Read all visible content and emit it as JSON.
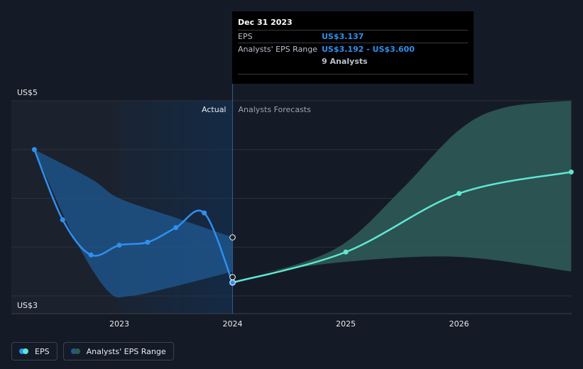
{
  "chart_data": {
    "type": "line",
    "y_axis": {
      "top_label": "US$5",
      "bottom_label": "US$3",
      "ylim": [
        3,
        5
      ]
    },
    "x_ticks": [
      "2023",
      "2024",
      "2025",
      "2026"
    ],
    "section_labels": {
      "actual": "Actual",
      "forecast": "Analysts Forecasts"
    },
    "series": [
      {
        "name": "EPS",
        "color": "#2f8ff0",
        "points": [
          {
            "x": 2022.25,
            "y": 4.5
          },
          {
            "x": 2022.5,
            "y": 3.78
          },
          {
            "x": 2022.75,
            "y": 3.42
          },
          {
            "x": 2023.0,
            "y": 3.52
          },
          {
            "x": 2023.25,
            "y": 3.55
          },
          {
            "x": 2023.5,
            "y": 3.7
          },
          {
            "x": 2023.75,
            "y": 3.85
          },
          {
            "x": 2024.0,
            "y": 3.137
          }
        ]
      },
      {
        "name": "EPS forecast",
        "color": "#5ee6d2",
        "points": [
          {
            "x": 2024.0,
            "y": 3.137
          },
          {
            "x": 2025.0,
            "y": 3.45
          },
          {
            "x": 2026.0,
            "y": 4.05
          },
          {
            "x": 2026.99,
            "y": 4.27
          }
        ]
      }
    ],
    "past_range": {
      "upper": [
        {
          "x": 2022.25,
          "y": 4.5
        },
        {
          "x": 2022.75,
          "y": 4.2
        },
        {
          "x": 2023.0,
          "y": 4.0
        },
        {
          "x": 2023.5,
          "y": 3.8
        },
        {
          "x": 2024.0,
          "y": 3.6
        }
      ],
      "lower": [
        {
          "x": 2022.25,
          "y": 4.5
        },
        {
          "x": 2022.6,
          "y": 3.6
        },
        {
          "x": 2022.9,
          "y": 3.05
        },
        {
          "x": 2023.1,
          "y": 3.0
        },
        {
          "x": 2023.5,
          "y": 3.1
        },
        {
          "x": 2024.0,
          "y": 3.25
        }
      ]
    },
    "forecast_range": {
      "upper": [
        {
          "x": 2024.0,
          "y": 3.192
        },
        {
          "x": 2024.5,
          "y": 3.3
        },
        {
          "x": 2025.0,
          "y": 3.55
        },
        {
          "x": 2025.5,
          "y": 4.1
        },
        {
          "x": 2026.0,
          "y": 4.7
        },
        {
          "x": 2026.4,
          "y": 4.93
        },
        {
          "x": 2026.99,
          "y": 5.0
        }
      ],
      "lower": [
        {
          "x": 2024.0,
          "y": 3.192
        },
        {
          "x": 2025.0,
          "y": 3.35
        },
        {
          "x": 2026.0,
          "y": 3.4
        },
        {
          "x": 2026.99,
          "y": 3.25
        }
      ]
    },
    "extra_markers": [
      {
        "x": 2024.0,
        "y": 3.6
      },
      {
        "x": 2024.0,
        "y": 3.192
      }
    ],
    "grid": true,
    "colors": {
      "background": "#151b26",
      "past_shade": "#1b222e",
      "highlight_band": "#142a45",
      "past_range_fill": "#1f5a93",
      "forecast_range_fill": "#2d5a57",
      "gridline": "#2a313c",
      "forecast_label": "#9aa3af"
    }
  },
  "tooltip": {
    "date": "Dec 31 2023",
    "rows": [
      {
        "key": "EPS",
        "value": "US$3.137"
      },
      {
        "key": "Analysts' EPS Range",
        "value": "US$3.192 - US$3.600"
      },
      {
        "key": "",
        "value": "9 Analysts"
      }
    ]
  },
  "legend": [
    {
      "label": "EPS",
      "color_a": "#2f8ff0",
      "color_b": "#5ee6d2"
    },
    {
      "label": "Analysts' EPS Range",
      "color_a": "#1f5a93",
      "color_b": "#2d5a57"
    }
  ]
}
